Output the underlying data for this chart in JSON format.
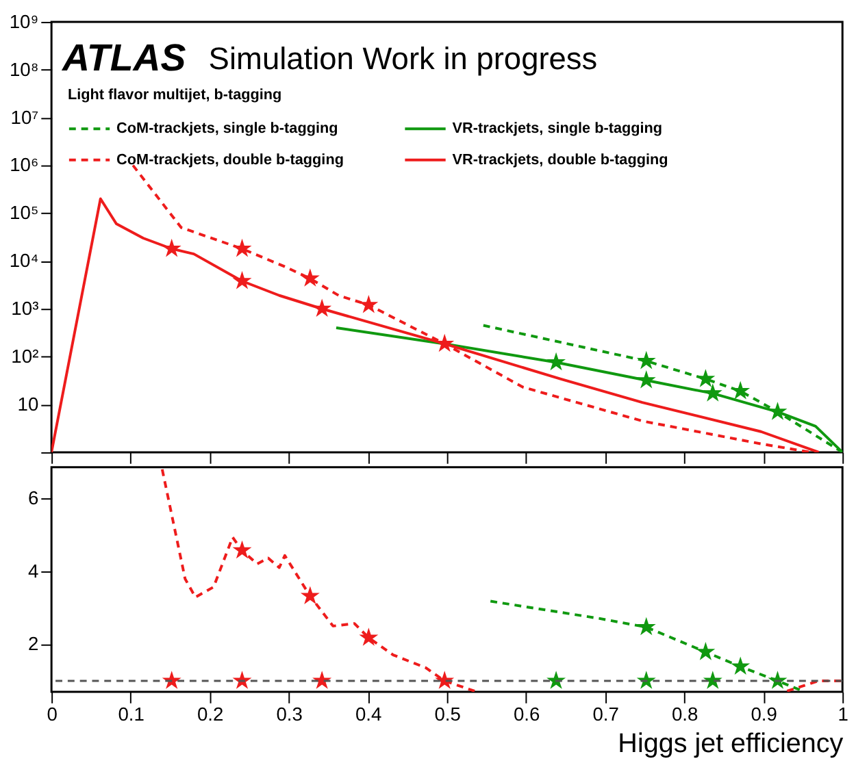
{
  "chart_data": [
    {
      "type": "line",
      "annotations": [
        "ATLAS",
        "Simulation Work in progress"
      ],
      "legend_title": "Light flavor multijet, b-tagging",
      "legend": "top",
      "log": "y",
      "tick_labels": "y",
      "grid": false,
      "xlim": [
        0,
        1
      ],
      "xticks": [
        0,
        0.1,
        0.2,
        0.3,
        0.4,
        0.5,
        0.6,
        0.7,
        0.8,
        0.9,
        1
      ],
      "ylim": [
        1,
        1000000000
      ],
      "yticks": [
        {
          "value": 1,
          "label": null
        },
        10,
        {
          "value": 100,
          "label": "10²"
        },
        {
          "value": 1000,
          "label": "10³"
        },
        {
          "value": 10000,
          "label": "10⁴"
        },
        {
          "value": 100000,
          "label": "10⁵"
        },
        {
          "value": 1000000,
          "label": "10⁶"
        },
        {
          "value": 10000000,
          "label": "10⁷"
        },
        {
          "value": 100000000,
          "label": "10⁸"
        },
        {
          "value": 1000000000,
          "label": "10⁹"
        }
      ],
      "series": [
        {
          "name": "CoM-trackjets, single b-tagging",
          "color": "#109910",
          "line_style": "dashed",
          "x": [
            0.546,
            0.752,
            0.827,
            0.871,
            0.918,
            1.0
          ],
          "values": [
            450,
            81,
            34,
            19,
            7,
            1
          ]
        },
        {
          "name": "CoM-trackjets, double b-tagging",
          "color": "#ee1c1c",
          "line_style": "dashed",
          "x": [
            0.103,
            0.164,
            0.241,
            0.295,
            0.327,
            0.363,
            0.401,
            0.497,
            0.596,
            0.747,
            0.897,
            0.96
          ],
          "values": [
            1000000,
            50000,
            18000,
            7600,
            4300,
            1900,
            1200,
            185,
            23,
            4.5,
            1.5,
            1
          ]
        },
        {
          "name": "VR-trackjets, single b-tagging",
          "color": "#109910",
          "line_style": "solid",
          "x": [
            0.36,
            0.497,
            0.638,
            0.752,
            0.836,
            0.918,
            0.966,
            1.0
          ],
          "values": [
            400,
            185,
            76,
            32,
            17,
            7,
            3.5,
            1
          ]
        },
        {
          "name": "VR-trackjets, double b-tagging",
          "color": "#ee1c1c",
          "line_style": "solid",
          "x": [
            0,
            0.062,
            0.082,
            0.116,
            0.152,
            0.18,
            0.241,
            0.288,
            0.342,
            0.497,
            0.644,
            0.747,
            0.897,
            0.97
          ],
          "values": [
            1,
            200000,
            60000,
            30000,
            18000,
            14000,
            3800,
            1900,
            1000,
            185,
            34,
            11,
            2.7,
            1
          ]
        },
        {
          "type": "scatter",
          "marker": "star",
          "color": "#ee1c1c",
          "x": [
            0.152,
            0.241,
            0.342,
            0.497,
            0.241,
            0.327,
            0.401
          ],
          "values": [
            18000,
            3800,
            1000,
            185,
            18000,
            4300,
            1200
          ]
        },
        {
          "type": "scatter",
          "marker": "star",
          "color": "#109910",
          "x": [
            0.638,
            0.752,
            0.836,
            0.918,
            0.752,
            0.827,
            0.871
          ],
          "values": [
            76,
            32,
            17,
            7,
            81,
            34,
            19
          ]
        }
      ]
    },
    {
      "type": "line",
      "xlabel": "Higgs jet efficiency",
      "grid": false,
      "xlim": [
        0,
        1
      ],
      "xticks": [
        0,
        0.1,
        0.2,
        0.3,
        0.4,
        0.5,
        0.6,
        0.7,
        0.8,
        0.9,
        1
      ],
      "ylim": [
        0.7,
        6.85
      ],
      "yticks": [
        2,
        4,
        6
      ],
      "ref_lines": [
        {
          "axis": "y",
          "value": 1,
          "color": "#555555",
          "line_style": "dashed"
        }
      ],
      "series": [
        {
          "color": "#ee1c1c",
          "line_style": "dashed",
          "x": [
            0.14,
            0.169,
            0.182,
            0.205,
            0.229,
            0.241,
            0.26,
            0.274,
            0.288,
            0.295,
            0.327,
            0.356,
            0.383,
            0.401,
            0.432,
            0.473,
            0.497,
            0.535
          ],
          "values": [
            6.79,
            3.79,
            3.29,
            3.57,
            4.93,
            4.57,
            4.2,
            4.36,
            4.1,
            4.43,
            3.32,
            2.5,
            2.57,
            2.18,
            1.71,
            1.36,
            1.0,
            0.72
          ]
        },
        {
          "color": "#ee1c1c",
          "line_style": "dashed",
          "x": [
            0.93,
            0.97,
            1.0
          ],
          "values": [
            0.72,
            1.0,
            1.0
          ]
        },
        {
          "color": "#109910",
          "line_style": "dashed",
          "x": [
            0.555,
            0.692,
            0.752,
            0.827,
            0.871,
            0.918,
            0.95
          ],
          "values": [
            3.18,
            2.71,
            2.47,
            1.79,
            1.39,
            1.0,
            0.72
          ]
        },
        {
          "type": "scatter",
          "marker": "star",
          "color": "#ee1c1c",
          "x": [
            0.152,
            0.241,
            0.342,
            0.497,
            0.241,
            0.327,
            0.401
          ],
          "values": [
            1,
            1,
            1,
            1,
            4.57,
            3.32,
            2.18
          ]
        },
        {
          "type": "scatter",
          "marker": "star",
          "color": "#109910",
          "x": [
            0.638,
            0.752,
            0.836,
            0.918,
            0.752,
            0.827,
            0.871
          ],
          "values": [
            1,
            1,
            1,
            1,
            2.47,
            1.79,
            1.39
          ]
        }
      ]
    }
  ]
}
